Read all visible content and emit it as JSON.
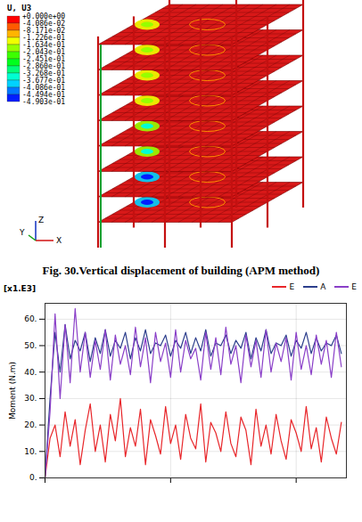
{
  "figure": {
    "contour_legend": {
      "title": "U, U3",
      "values": [
        0.0,
        -0.04086,
        -0.08171,
        -0.1226,
        -0.1634,
        -0.2043,
        -0.2451,
        -0.286,
        -0.3268,
        -0.3677,
        -0.4086,
        -0.4494,
        -0.4903
      ],
      "labels": [
        "+0.000e+00",
        "-4.086e-02",
        "-8.171e-02",
        "-1.226e-01",
        "-1.634e-01",
        "-2.043e-01",
        "-2.451e-01",
        "-2.860e-01",
        "-3.268e-01",
        "-3.677e-01",
        "-4.086e-01",
        "-4.494e-01",
        "-4.903e-01"
      ]
    },
    "triad": [
      "Z",
      "Y",
      "X"
    ]
  },
  "caption": "Fig. 30.Vertical displacement of building (APM method)",
  "chart_data": {
    "type": "line",
    "y_label": "Moment (N.m)",
    "annotations": [
      "[x1.E3]"
    ],
    "x": [
      0,
      1,
      2,
      3,
      4,
      5,
      6,
      7,
      8,
      9,
      10,
      11,
      12,
      13,
      14,
      15,
      16,
      17,
      18,
      19,
      20,
      21,
      22,
      23,
      24,
      25,
      26,
      27,
      28,
      29,
      30,
      31,
      32,
      33,
      34,
      35,
      36,
      37,
      38,
      39,
      40,
      41,
      42,
      43,
      44,
      45,
      46,
      47,
      48,
      49,
      50,
      51,
      52,
      53,
      54,
      55,
      56,
      57,
      58,
      59
    ],
    "series": [
      {
        "name": "E",
        "color": "#e8262a",
        "values": [
          0,
          15,
          20,
          8,
          25,
          12,
          22,
          5,
          18,
          28,
          10,
          20,
          6,
          24,
          14,
          30,
          8,
          19,
          12,
          26,
          5,
          22,
          16,
          9,
          27,
          13,
          20,
          7,
          24,
          15,
          11,
          28,
          6,
          21,
          17,
          10,
          25,
          13,
          8,
          23,
          18,
          5,
          26,
          12,
          20,
          9,
          24,
          14,
          7,
          22,
          17,
          10,
          27,
          11,
          19,
          6,
          23,
          15,
          9,
          21
        ]
      },
      {
        "name": "A",
        "color": "#2c3e8c",
        "values": [
          0,
          30,
          55,
          40,
          58,
          45,
          52,
          48,
          55,
          44,
          53,
          47,
          56,
          46,
          52,
          49,
          55,
          45,
          53,
          48,
          56,
          47,
          51,
          50,
          54,
          46,
          52,
          49,
          55,
          47,
          53,
          48,
          56,
          46,
          51,
          50,
          54,
          47,
          52,
          49,
          55,
          45,
          53,
          48,
          56,
          47,
          51,
          50,
          54,
          46,
          52,
          49,
          55,
          47,
          53,
          48,
          51,
          50,
          54,
          47
        ]
      },
      {
        "name": "E",
        "color": "#8a3fc8",
        "values": [
          0,
          25,
          62,
          30,
          58,
          36,
          64,
          40,
          55,
          38,
          52,
          41,
          56,
          37,
          54,
          43,
          50,
          39,
          57,
          42,
          53,
          36,
          55,
          44,
          51,
          38,
          56,
          40,
          52,
          45,
          49,
          37,
          55,
          41,
          53,
          39,
          57,
          43,
          50,
          36,
          54,
          42,
          52,
          38,
          56,
          40,
          51,
          44,
          53,
          37,
          55,
          41,
          50,
          39,
          54,
          43,
          52,
          38,
          55,
          42
        ]
      }
    ],
    "xlim": [
      0,
      60
    ],
    "xticks": [
      0,
      25,
      50
    ],
    "ylim": [
      0,
      66
    ],
    "yticks": [
      {
        "value": 0,
        "label": "0."
      },
      {
        "value": 10,
        "label": "10."
      },
      {
        "value": 20,
        "label": "20."
      },
      {
        "value": 30,
        "label": "30."
      },
      {
        "value": 40,
        "label": "40."
      },
      {
        "value": 50,
        "label": "50."
      },
      {
        "value": 60,
        "label": "60."
      }
    ],
    "grid": true,
    "legend": "top-right",
    "tick_labels": "y"
  }
}
